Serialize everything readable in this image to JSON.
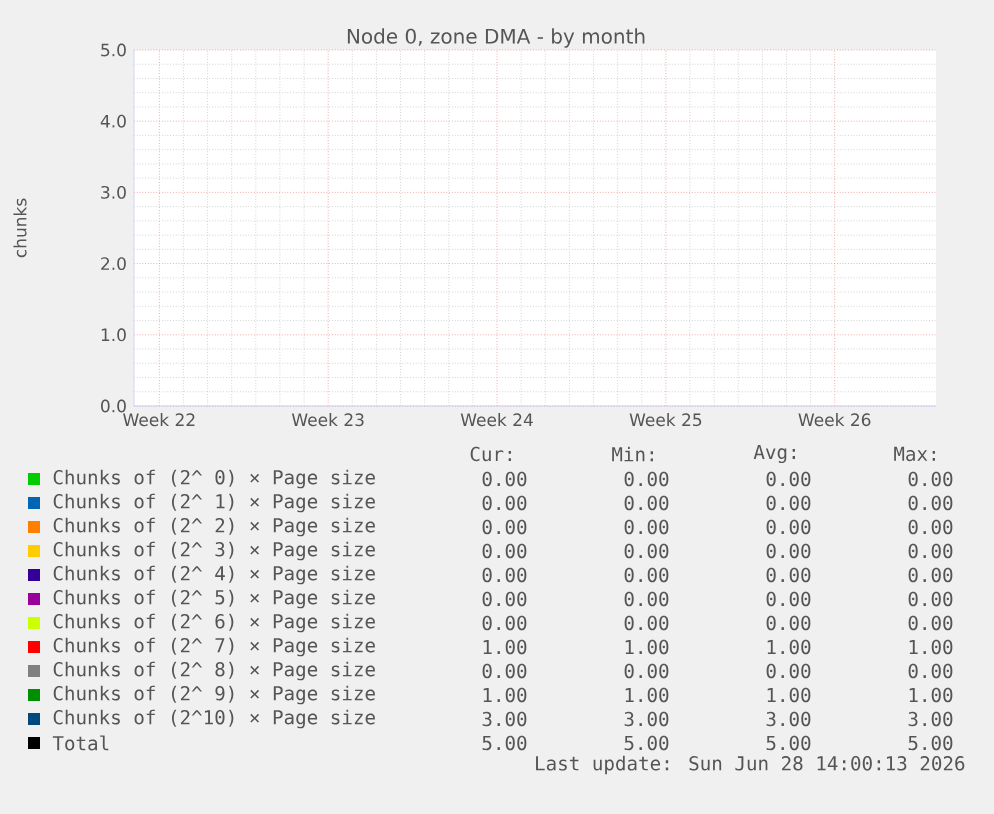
{
  "chart_data": {
    "type": "line",
    "title": "Node 0, zone DMA - by month",
    "ylabel": "chunks",
    "categories": [
      "Week 22",
      "Week 23",
      "Week 24",
      "Week 25",
      "Week 26"
    ],
    "ylim": [
      0,
      5
    ],
    "yticks": [
      {
        "value": 0,
        "label": "0.0"
      },
      {
        "value": 1,
        "label": "1.0"
      },
      {
        "value": 2,
        "label": "2.0"
      },
      {
        "value": 3,
        "label": "3.0"
      },
      {
        "value": 4,
        "label": "4.0"
      },
      {
        "value": 5,
        "label": "5.0"
      }
    ],
    "grid": true,
    "legend": "bottom",
    "series": [
      {
        "name": "Chunks of (2^ 0) × Page size",
        "color": "#00cc00",
        "values": [
          null,
          null,
          null,
          null,
          null
        ]
      },
      {
        "name": "Chunks of (2^ 1) × Page size",
        "color": "#0066b3",
        "values": [
          null,
          null,
          null,
          null,
          null
        ]
      },
      {
        "name": "Chunks of (2^ 2) × Page size",
        "color": "#ff8000",
        "values": [
          null,
          null,
          null,
          null,
          null
        ]
      },
      {
        "name": "Chunks of (2^ 3) × Page size",
        "color": "#ffcc00",
        "values": [
          null,
          null,
          null,
          null,
          null
        ]
      },
      {
        "name": "Chunks of (2^ 4) × Page size",
        "color": "#330099",
        "values": [
          null,
          null,
          null,
          null,
          null
        ]
      },
      {
        "name": "Chunks of (2^ 5) × Page size",
        "color": "#990099",
        "values": [
          null,
          null,
          null,
          null,
          null
        ]
      },
      {
        "name": "Chunks of (2^ 6) × Page size",
        "color": "#ccff00",
        "values": [
          null,
          null,
          null,
          null,
          null
        ]
      },
      {
        "name": "Chunks of (2^ 7) × Page size",
        "color": "#ff0000",
        "values": [
          null,
          null,
          null,
          null,
          null
        ]
      },
      {
        "name": "Chunks of (2^ 8) × Page size",
        "color": "#808080",
        "values": [
          null,
          null,
          null,
          null,
          null
        ]
      },
      {
        "name": "Chunks of (2^ 9) × Page size",
        "color": "#008f00",
        "values": [
          null,
          null,
          null,
          null,
          null
        ]
      },
      {
        "name": "Chunks of (2^10) × Page size",
        "color": "#00487d",
        "values": [
          null,
          null,
          null,
          null,
          null
        ]
      },
      {
        "name": "Total",
        "color": "#000000",
        "values": [
          null,
          null,
          null,
          null,
          null
        ]
      }
    ],
    "annotations": [
      "Cur:",
      "Min:",
      "Avg:",
      "Max:",
      "0.00",
      "0.00",
      "0.00",
      "0.00",
      "0.00",
      "0.00",
      "0.00",
      "0.00",
      "0.00",
      "0.00",
      "0.00",
      "0.00",
      "0.00",
      "0.00",
      "0.00",
      "0.00",
      "0.00",
      "0.00",
      "0.00",
      "0.00",
      "0.00",
      "0.00",
      "0.00",
      "0.00",
      "0.00",
      "0.00",
      "0.00",
      "0.00",
      "1.00",
      "1.00",
      "1.00",
      "1.00",
      "0.00",
      "0.00",
      "0.00",
      "0.00",
      "1.00",
      "1.00",
      "1.00",
      "1.00",
      "3.00",
      "3.00",
      "3.00",
      "3.00",
      "5.00",
      "5.00",
      "5.00",
      "5.00",
      "Last update: Sun Jun 28 14:00:13 2026"
    ]
  }
}
